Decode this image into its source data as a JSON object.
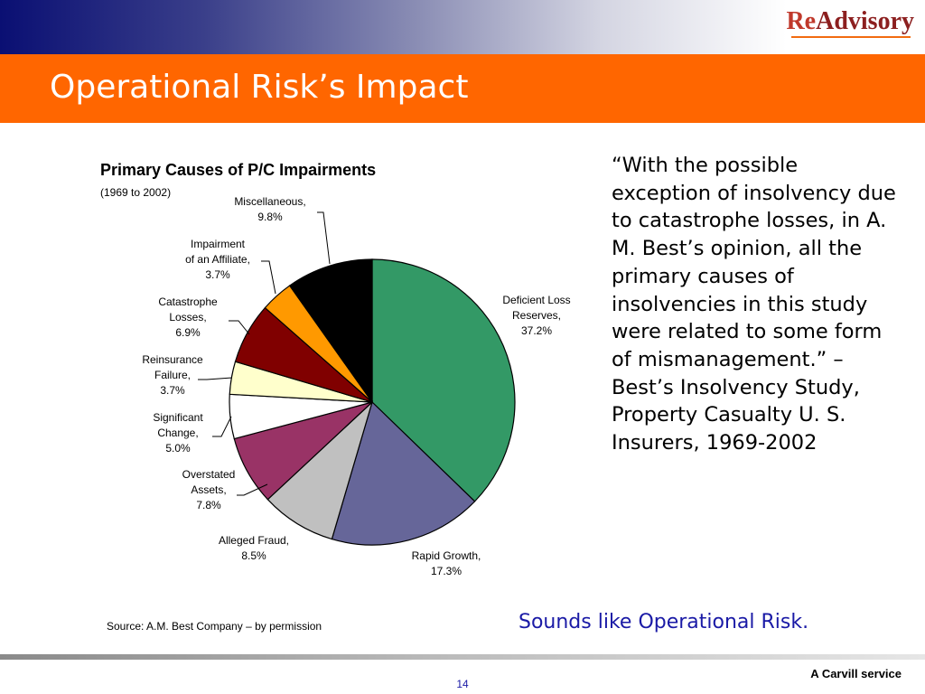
{
  "header": {
    "logo_re": "Re",
    "logo_advisory": "Advisory",
    "title": "Operational Risk’s Impact"
  },
  "chart_data": {
    "type": "pie",
    "title": "Primary Causes of P/C Impairments",
    "subtitle": "(1969 to 2002)",
    "slices": [
      {
        "label": "Deficient Loss Reserves,",
        "value": 37.2,
        "display": "37.2%",
        "color": "#339966"
      },
      {
        "label": "Rapid Growth,",
        "value": 17.3,
        "display": "17.3%",
        "color": "#666699"
      },
      {
        "label": "Alleged Fraud,",
        "value": 8.5,
        "display": "8.5%",
        "color": "#c0c0c0"
      },
      {
        "label": "Overstated Assets,",
        "value": 7.8,
        "display": "7.8%",
        "color": "#993366"
      },
      {
        "label": "Significant Change,",
        "value": 5.0,
        "display": "5.0%",
        "color": "#ffffff"
      },
      {
        "label": "Reinsurance Failure,",
        "value": 3.7,
        "display": "3.7%",
        "color": "#ffffcc"
      },
      {
        "label": "Catastrophe Losses,",
        "value": 6.9,
        "display": "6.9%",
        "color": "#800000"
      },
      {
        "label": "Impairment of an Affiliate,",
        "value": 3.7,
        "display": "3.7%",
        "color": "#ff9900"
      },
      {
        "label": "Miscellaneous,",
        "value": 9.8,
        "display": "9.8%",
        "color": "#000000"
      }
    ]
  },
  "quote": "“With the possible exception of insolvency due to catastrophe losses, in A. M. Best’s opinion, all the primary causes of insolvencies in this study were related to some form of mismanagement.” – Best’s Insolvency Study, Property Casualty U. S. Insurers, 1969-2002",
  "source": "Source: A.M. Best Company – by permission",
  "callout": "Sounds like Operational Risk.",
  "footer": {
    "page_number": "14",
    "service": "A Carvill service"
  }
}
